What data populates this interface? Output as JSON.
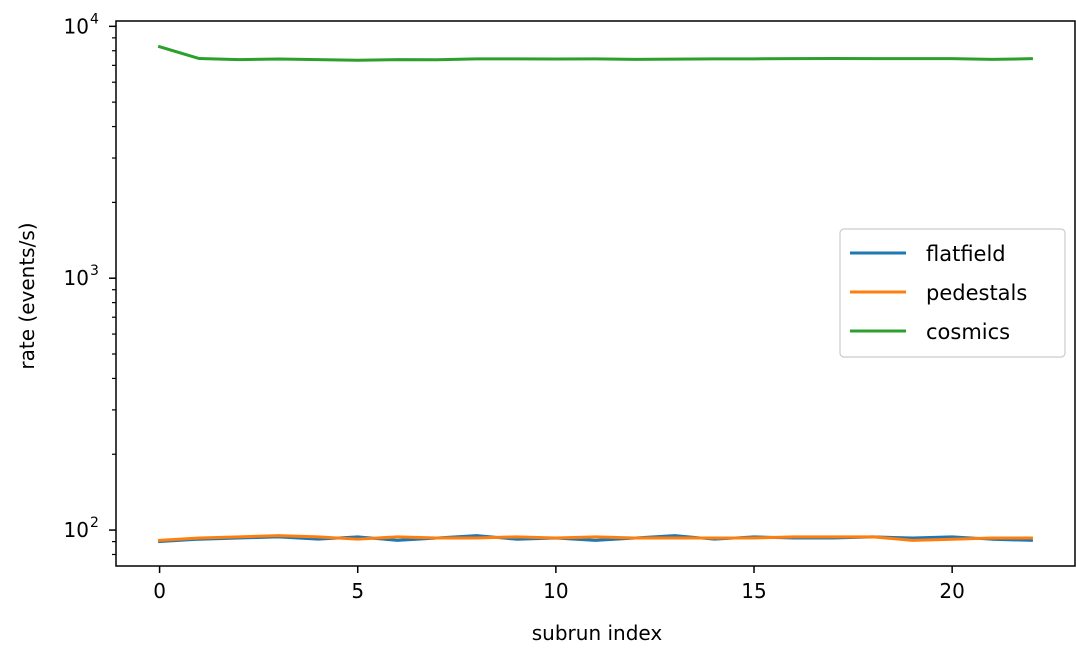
{
  "chart_data": {
    "type": "line",
    "title": "",
    "xlabel": "subrun index",
    "ylabel": "rate (events/s)",
    "yscale": "log",
    "xlim": [
      -1.1,
      23.1
    ],
    "ylim": [
      72,
      10500
    ],
    "x_ticks": [
      0,
      5,
      10,
      15,
      20
    ],
    "y_ticks": [
      {
        "value": 100,
        "base": "10",
        "exp": "2"
      },
      {
        "value": 1000,
        "base": "10",
        "exp": "3"
      },
      {
        "value": 10000,
        "base": "10",
        "exp": "4"
      }
    ],
    "grid": false,
    "legend_position": "center-right",
    "x": [
      0,
      1,
      2,
      3,
      4,
      5,
      6,
      7,
      8,
      9,
      10,
      11,
      12,
      13,
      14,
      15,
      16,
      17,
      18,
      19,
      20,
      21,
      22
    ],
    "series": [
      {
        "name": "flatfield",
        "color": "#1f77b4",
        "values": [
          90,
          92,
          93,
          94,
          92,
          94,
          91,
          93,
          95,
          92,
          93,
          91,
          93,
          95,
          92,
          94,
          93,
          93,
          94,
          93,
          94,
          92,
          91
        ]
      },
      {
        "name": "pedestals",
        "color": "#ff7f0e",
        "values": [
          91,
          93,
          94,
          95,
          94,
          92,
          94,
          93,
          93,
          94,
          93,
          94,
          93,
          93,
          93,
          93,
          94,
          94,
          94,
          91,
          92,
          93,
          93
        ]
      },
      {
        "name": "cosmics",
        "color": "#2ca02c",
        "values": [
          8300,
          7450,
          7380,
          7420,
          7380,
          7330,
          7380,
          7370,
          7430,
          7430,
          7420,
          7430,
          7390,
          7410,
          7430,
          7430,
          7440,
          7450,
          7440,
          7440,
          7440,
          7390,
          7440
        ]
      }
    ]
  }
}
